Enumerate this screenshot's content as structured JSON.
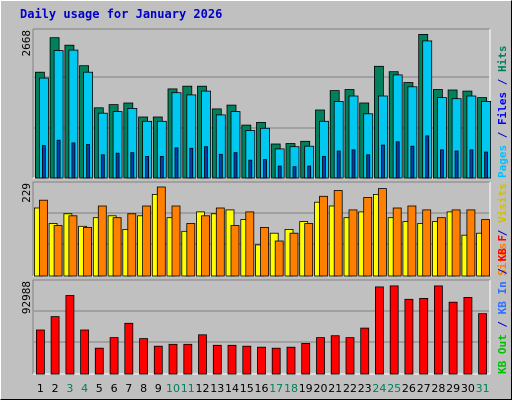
{
  "title": "Daily usage for January 2026",
  "chart_data": [
    {
      "type": "bar",
      "panel": "pages-files-hits",
      "y_max_label": "2668",
      "ylim": [
        0,
        2668
      ],
      "grid": true,
      "categories": [
        "1",
        "2",
        "3",
        "4",
        "5",
        "6",
        "7",
        "8",
        "9",
        "10",
        "11",
        "12",
        "13",
        "14",
        "15",
        "16",
        "17",
        "18",
        "19",
        "20",
        "21",
        "22",
        "23",
        "24",
        "25",
        "26",
        "27",
        "28",
        "29",
        "30",
        "31"
      ],
      "weekend_days": [
        "3",
        "4",
        "10",
        "11",
        "17",
        "18",
        "24",
        "25",
        "31"
      ],
      "right_legend": [
        {
          "text": "Hits",
          "color": "#00805c"
        },
        {
          "text": " / ",
          "color": "#0000cc"
        },
        {
          "text": "Files",
          "color": "#0000ff"
        },
        {
          "text": " / ",
          "color": "#0000cc"
        },
        {
          "text": "Pages",
          "color": "#00c0ff"
        }
      ],
      "series": [
        {
          "name": "Hits",
          "color": "#00805c",
          "values": [
            1960,
            2600,
            2460,
            2080,
            1300,
            1360,
            1390,
            1130,
            1130,
            1650,
            1700,
            1700,
            1280,
            1350,
            980,
            1030,
            630,
            640,
            680,
            1260,
            1620,
            1640,
            1390,
            2070,
            1970,
            1770,
            2660,
            1640,
            1630,
            1610,
            1490
          ]
        },
        {
          "name": "Files",
          "color": "#00c8f0",
          "values": [
            1850,
            2360,
            2370,
            1960,
            1200,
            1230,
            1290,
            1050,
            1050,
            1580,
            1540,
            1610,
            1170,
            1230,
            880,
            920,
            540,
            580,
            590,
            1050,
            1420,
            1520,
            1190,
            1520,
            1910,
            1690,
            2540,
            1490,
            1470,
            1520,
            1420
          ]
        },
        {
          "name": "Pages",
          "color": "#0040b0",
          "values": [
            600,
            700,
            650,
            620,
            430,
            460,
            470,
            400,
            400,
            560,
            550,
            580,
            440,
            470,
            330,
            340,
            220,
            210,
            220,
            400,
            500,
            520,
            430,
            610,
            670,
            590,
            780,
            520,
            500,
            520,
            480
          ]
        }
      ]
    },
    {
      "type": "bar",
      "panel": "visits-sites",
      "y_max_label": "229",
      "ylim": [
        0,
        229
      ],
      "grid": true,
      "right_legend": [
        {
          "text": "Visits",
          "color": "#d0c000"
        },
        {
          "text": " / ",
          "color": "#0000cc"
        },
        {
          "text": "Sites",
          "color": "#ff8000"
        }
      ],
      "series": [
        {
          "name": "Visits",
          "color": "#ffff00",
          "values": [
            175,
            135,
            160,
            128,
            150,
            155,
            120,
            155,
            210,
            150,
            115,
            165,
            160,
            170,
            145,
            80,
            110,
            120,
            140,
            190,
            180,
            150,
            165,
            210,
            150,
            140,
            135,
            140,
            165,
            105,
            110
          ]
        },
        {
          "name": "Sites",
          "color": "#ff8000",
          "values": [
            195,
            130,
            155,
            125,
            180,
            150,
            160,
            180,
            229,
            180,
            135,
            155,
            175,
            130,
            165,
            125,
            90,
            110,
            135,
            205,
            220,
            170,
            202,
            225,
            175,
            180,
            170,
            150,
            170,
            170,
            145
          ]
        }
      ]
    },
    {
      "type": "bar",
      "panel": "kbytes",
      "y_max_label": "92988",
      "ylim": [
        0,
        92988
      ],
      "grid": true,
      "right_legend": [
        {
          "text": "KB F",
          "color": "#ff0000"
        },
        {
          "text": " / ",
          "color": "#0000cc"
        },
        {
          "text": "KB In",
          "color": "#3070ff"
        },
        {
          "text": " / ",
          "color": "#0000cc"
        },
        {
          "text": "KB Out",
          "color": "#00c000"
        }
      ],
      "series": [
        {
          "name": "KB F",
          "color": "#ff0000",
          "values": [
            46000,
            60000,
            82000,
            46000,
            27000,
            38000,
            53000,
            37000,
            29000,
            31000,
            31000,
            41000,
            30000,
            30000,
            29000,
            28000,
            27000,
            28000,
            32000,
            38000,
            40000,
            38000,
            48000,
            91000,
            92000,
            78000,
            79000,
            92000,
            75000,
            80000,
            63000
          ]
        }
      ]
    }
  ]
}
